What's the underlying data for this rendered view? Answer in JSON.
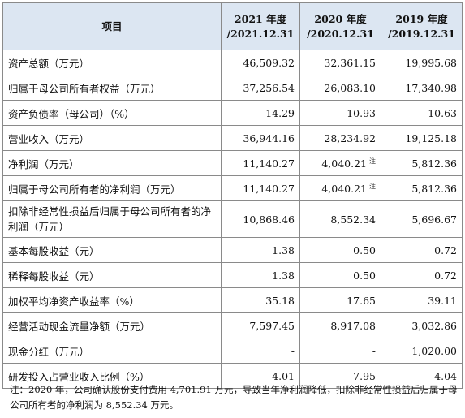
{
  "table": {
    "headers": {
      "item": "项目",
      "periods": [
        {
          "year": "2021 年度",
          "date": "/2021.12.31"
        },
        {
          "year": "2020 年度",
          "date": "/2020.12.31"
        },
        {
          "year": "2019 年度",
          "date": "/2019.12.31"
        }
      ]
    },
    "rows": [
      {
        "label": "资产总额（万元）",
        "values": [
          "46,509.32",
          "32,361.15",
          "19,995.68"
        ]
      },
      {
        "label": "归属于母公司所有者权益（万元）",
        "values": [
          "37,256.54",
          "26,083.10",
          "17,340.98"
        ]
      },
      {
        "label": "资产负债率（母公司）（%）",
        "values": [
          "14.29",
          "10.93",
          "10.63"
        ]
      },
      {
        "label": "营业收入（万元）",
        "values": [
          "36,944.16",
          "28,234.92",
          "19,125.18"
        ]
      },
      {
        "label": "净利润（万元）",
        "values": [
          "11,140.27",
          "4,040.21",
          "5,812.36"
        ],
        "note": "注"
      },
      {
        "label": "归属于母公司所有者的净利润（万元）",
        "values": [
          "11,140.27",
          "4,040.21",
          "5,812.36"
        ],
        "note": "注"
      },
      {
        "label": "扣除非经常性损益后归属于母公司所有者的净利润（万元）",
        "values": [
          "10,868.46",
          "8,552.34",
          "5,696.67"
        ]
      },
      {
        "label": "基本每股收益（元）",
        "values": [
          "1.38",
          "0.50",
          "0.72"
        ]
      },
      {
        "label": "稀释每股收益（元）",
        "values": [
          "1.38",
          "0.50",
          "0.72"
        ]
      },
      {
        "label": "加权平均净资产收益率（%）",
        "values": [
          "35.18",
          "17.65",
          "39.11"
        ]
      },
      {
        "label": "经营活动现金流量净额（万元）",
        "values": [
          "7,597.45",
          "8,917.08",
          "3,032.86"
        ]
      },
      {
        "label": "现金分红（万元）",
        "values": [
          "-",
          "-",
          "1,020.00"
        ]
      },
      {
        "label": "研发投入占营业收入比例（%）",
        "values": [
          "4.01",
          "7.95",
          "4.04"
        ]
      }
    ]
  },
  "footnote": "注：2020 年，公司确认股份支付费用 4,701.91 万元，导致当年净利润降低，扣除非经常性损益后归属于母公司所有者的净利润为 8,552.34 万元。",
  "colors": {
    "header_bg": "#dce6f2",
    "border": "#8a8a8a"
  }
}
